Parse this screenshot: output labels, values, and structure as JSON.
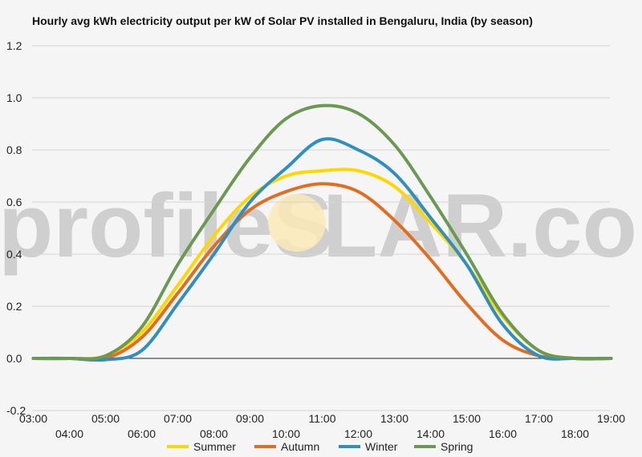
{
  "watermark": {
    "left": "profileS",
    "right": "LAR.com"
  },
  "chart_data": {
    "type": "line",
    "title": "Hourly avg kWh electricity output per kW of Solar PV installed in Bengaluru, India (by season)",
    "xlabel": "",
    "ylabel": "",
    "ylim": [
      -0.2,
      1.2
    ],
    "yticks": [
      -0.2,
      0.0,
      0.2,
      0.4,
      0.6,
      0.8,
      1.0,
      1.2
    ],
    "ytick_labels": [
      "-0.2",
      "0.0",
      "0.2",
      "0.4",
      "0.6",
      "0.8",
      "1.0",
      "1.2"
    ],
    "xlim": [
      3,
      19
    ],
    "xtick_labels": [
      "03:00",
      "04:00",
      "05:00",
      "06:00",
      "07:00",
      "08:00",
      "09:00",
      "10:00",
      "11:00",
      "12:00",
      "13:00",
      "14:00",
      "15:00",
      "16:00",
      "17:00",
      "18:00",
      "19:00"
    ],
    "x": [
      3,
      4,
      5,
      6,
      7,
      8,
      9,
      10,
      11,
      12,
      13,
      14,
      15,
      16,
      17,
      18,
      19
    ],
    "grid": true,
    "legend_position": "bottom",
    "series": [
      {
        "name": "Summer",
        "color": "#ffd700",
        "values": [
          0,
          0,
          0.01,
          0.1,
          0.28,
          0.47,
          0.62,
          0.7,
          0.72,
          0.72,
          0.66,
          0.52,
          0.36,
          0.16,
          0.03,
          0.0,
          0
        ]
      },
      {
        "name": "Autumn",
        "color": "#e36c1f",
        "values": [
          0,
          0,
          0.0,
          0.08,
          0.25,
          0.43,
          0.57,
          0.64,
          0.67,
          0.64,
          0.53,
          0.38,
          0.21,
          0.07,
          0.01,
          0.0,
          0
        ]
      },
      {
        "name": "Winter",
        "color": "#2e8fc2",
        "values": [
          0,
          0,
          -0.005,
          0.03,
          0.21,
          0.4,
          0.6,
          0.73,
          0.84,
          0.8,
          0.71,
          0.54,
          0.36,
          0.13,
          0.01,
          0.0,
          0
        ]
      },
      {
        "name": "Spring",
        "color": "#6a9a52",
        "values": [
          0,
          0,
          0.01,
          0.12,
          0.36,
          0.57,
          0.77,
          0.92,
          0.97,
          0.94,
          0.82,
          0.62,
          0.4,
          0.17,
          0.03,
          0.0,
          0
        ]
      }
    ]
  }
}
